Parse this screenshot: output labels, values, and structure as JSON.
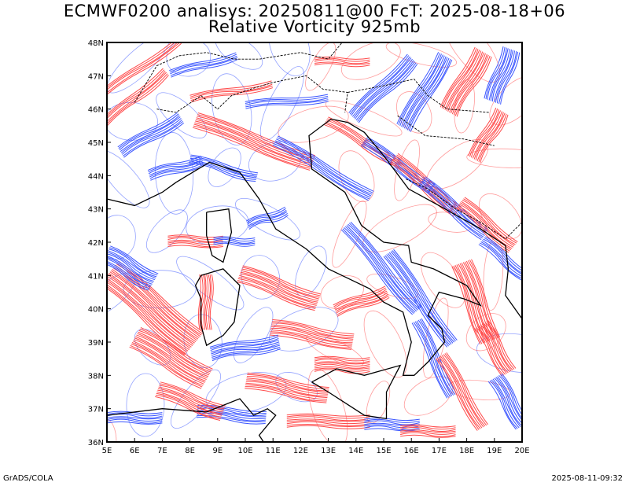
{
  "title": {
    "line1": "ECMWF0200 analisys: 20250811@00 FcT: 2025-08-18+06",
    "line2": "Relative Vorticity 925mb"
  },
  "map": {
    "lon_range": [
      5,
      20
    ],
    "lat_range": [
      36,
      48
    ],
    "x_ticks": [
      "5E",
      "6E",
      "7E",
      "8E",
      "9E",
      "10E",
      "11E",
      "12E",
      "13E",
      "14E",
      "15E",
      "16E",
      "17E",
      "18E",
      "19E",
      "20E"
    ],
    "y_ticks": [
      "36N",
      "37N",
      "38N",
      "39N",
      "40N",
      "41N",
      "42N",
      "43N",
      "44N",
      "45N",
      "46N",
      "47N",
      "48N"
    ],
    "colors": {
      "positive": "#ff4a4a",
      "negative": "#3a55ff",
      "coast": "#000000",
      "border": "#000000"
    }
  },
  "footer": {
    "left": "GrADS/COLA",
    "right": "2025-08-11-09:32"
  }
}
